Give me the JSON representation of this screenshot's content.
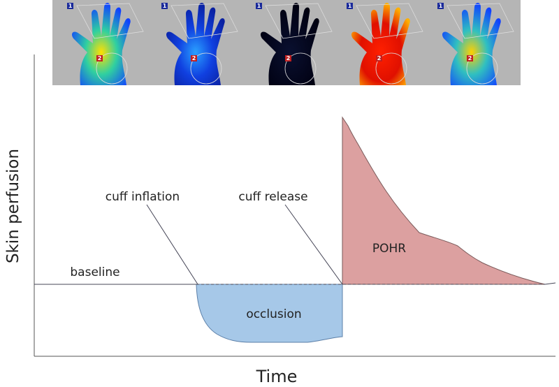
{
  "panels": [
    {
      "roi_top": "1",
      "roi_palm": "2"
    },
    {
      "roi_top": "1",
      "roi_palm": "2"
    },
    {
      "roi_top": "1",
      "roi_palm": "2"
    },
    {
      "roi_top": "1",
      "roi_palm": "2"
    },
    {
      "roi_top": "1",
      "roi_palm": "2"
    }
  ],
  "axes": {
    "y_label": "Skin perfusion",
    "x_label": "Time"
  },
  "annotations": {
    "cuff_inflation": "cuff inflation",
    "cuff_release": "cuff release",
    "baseline": "baseline",
    "occlusion": "occlusion",
    "pohr": "POHR"
  }
}
